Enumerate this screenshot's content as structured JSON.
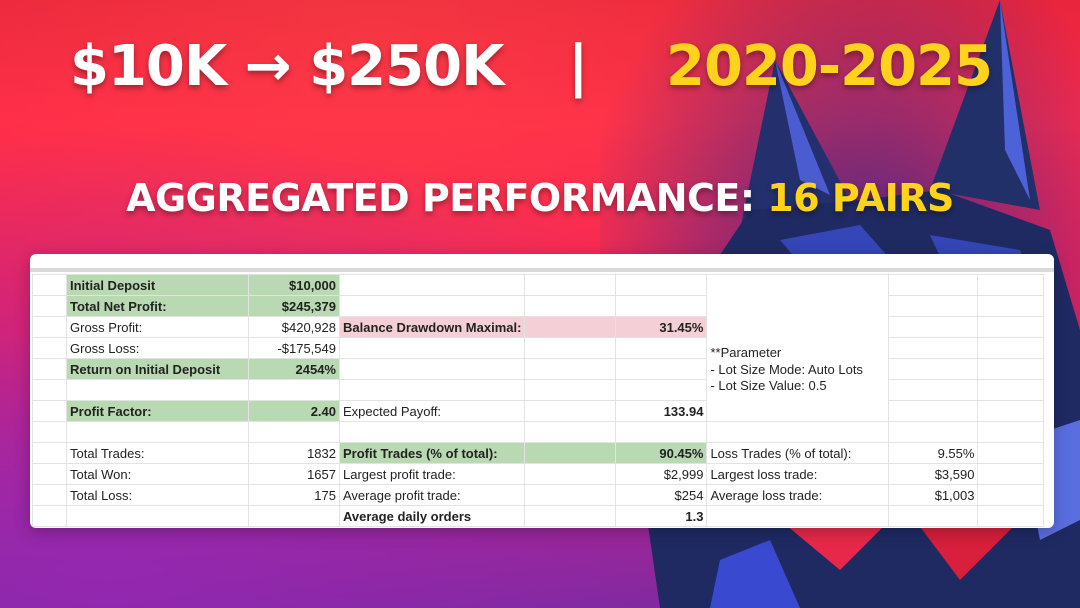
{
  "hero": {
    "left": "$10K → $250K",
    "separator": "|",
    "right": "2020-2025"
  },
  "subtitle": {
    "prefix": "AGGREGATED PERFORMANCE: ",
    "accent": "16 PAIRS"
  },
  "colors": {
    "hero_text": "#ffffff",
    "accent_yellow": "#ffd21c",
    "cell_green": "#b9d9b2",
    "cell_pink": "#f4d0d6"
  },
  "sheet": {
    "initial_deposit_label": "Initial Deposit",
    "initial_deposit_value": "$10,000",
    "total_net_profit_label": "Total Net Profit:",
    "total_net_profit_value": "$245,379",
    "gross_profit_label": "Gross Profit:",
    "gross_profit_value": "$420,928",
    "balance_drawdown_label": "Balance Drawdown Maximal:",
    "balance_drawdown_value": "31.45%",
    "gross_loss_label": "Gross Loss:",
    "gross_loss_value": "-$175,549",
    "return_label": "Return on Initial Deposit",
    "return_value": "2454%",
    "profit_factor_label": "Profit Factor:",
    "profit_factor_value": "2.40",
    "expected_payoff_label": "Expected Payoff:",
    "expected_payoff_value": "133.94",
    "total_trades_label": "Total Trades:",
    "total_trades_value": "1832",
    "profit_trades_label": "Profit Trades (% of total):",
    "profit_trades_value": "90.45%",
    "loss_trades_label": "Loss Trades (% of total):",
    "loss_trades_value": "9.55%",
    "total_won_label": "Total Won:",
    "total_won_value": "1657",
    "largest_profit_label": "Largest profit trade:",
    "largest_profit_value": "$2,999",
    "largest_loss_label": "Largest loss trade:",
    "largest_loss_value": "$3,590",
    "total_loss_label": "Total Loss:",
    "total_loss_value": "175",
    "average_profit_label": "Average profit trade:",
    "average_profit_value": "$254",
    "average_loss_label": "Average loss trade:",
    "average_loss_value": "$1,003",
    "average_daily_label": "Average daily orders",
    "average_daily_value": "1.3",
    "param_title": "**Parameter",
    "param_line1": "- Lot Size Mode: Auto Lots",
    "param_line2": "- Lot Size Value: 0.5"
  },
  "decor": {
    "wolf_icon": "wolf-illustration-icon"
  }
}
